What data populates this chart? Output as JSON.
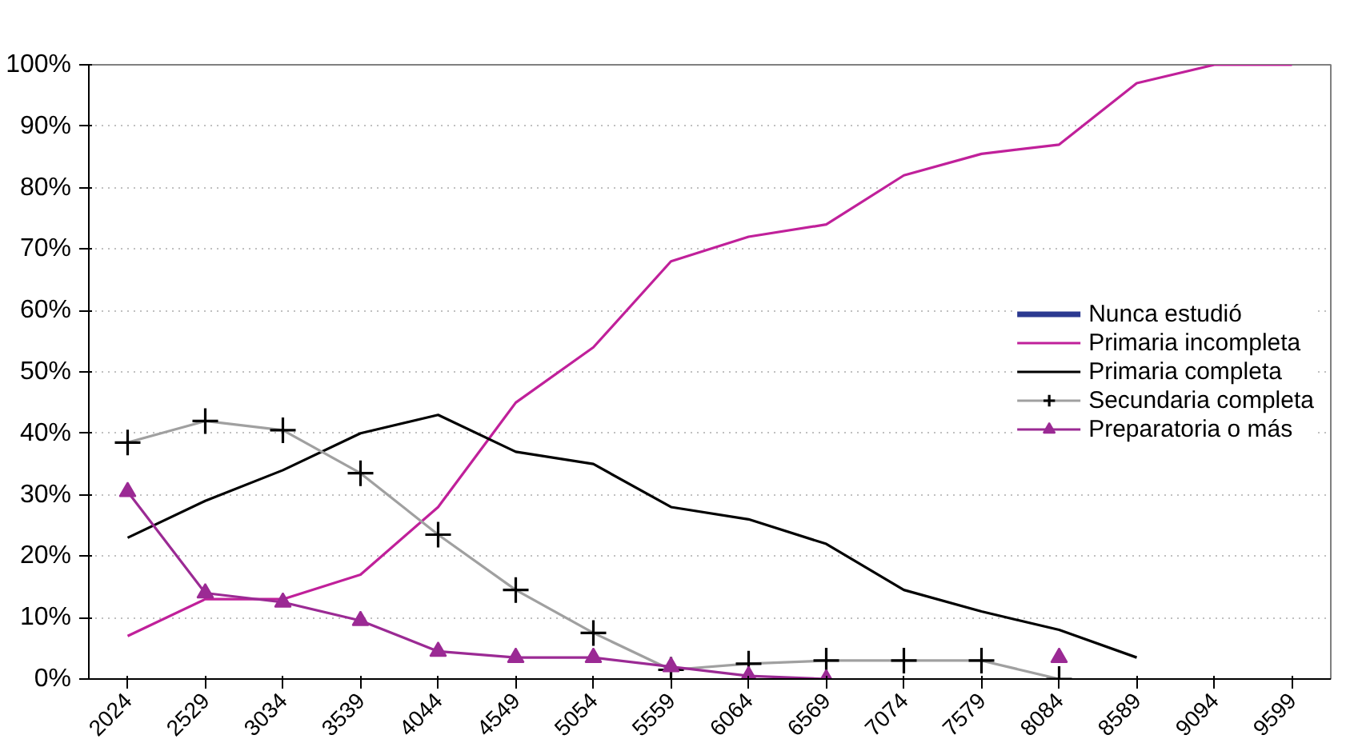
{
  "chart_data": {
    "type": "line",
    "categories": [
      "2024",
      "2529",
      "3034",
      "3539",
      "4044",
      "4549",
      "5054",
      "5559",
      "6064",
      "6569",
      "7074",
      "7579",
      "8084",
      "8589",
      "9094",
      "9599"
    ],
    "ylim": [
      0,
      100
    ],
    "yticks": [
      {
        "value": 0,
        "label": "0%"
      },
      {
        "value": 10,
        "label": "10%"
      },
      {
        "value": 20,
        "label": "20%"
      },
      {
        "value": 30,
        "label": "30%"
      },
      {
        "value": 40,
        "label": "40%"
      },
      {
        "value": 50,
        "label": "50%"
      },
      {
        "value": 60,
        "label": "60%"
      },
      {
        "value": 70,
        "label": "70%"
      },
      {
        "value": 80,
        "label": "80%"
      },
      {
        "value": 90,
        "label": "90%"
      },
      {
        "value": 100,
        "label": "100%"
      }
    ],
    "grid": "y",
    "legend": "right",
    "line_style": "solid",
    "series": [
      {
        "name": "Nunca estudió",
        "color": "#2b3990",
        "marker": "none",
        "values": [
          null,
          null,
          null,
          null,
          null,
          null,
          null,
          null,
          null,
          null,
          null,
          null,
          null,
          null,
          null,
          null
        ]
      },
      {
        "name": "Primaria incompleta",
        "color": "#c0209a",
        "marker": "none",
        "values": [
          7,
          13,
          13,
          17,
          28,
          45,
          54,
          68,
          72,
          74,
          82,
          85.5,
          87,
          97,
          100,
          100
        ]
      },
      {
        "name": "Primaria completa",
        "color": "#000000",
        "marker": "none",
        "values": [
          23,
          29,
          34,
          40,
          43,
          37,
          35,
          28,
          26,
          22,
          14.5,
          11,
          8,
          3.5,
          null,
          null
        ]
      },
      {
        "name": "Secundaria completa",
        "color": "#a0a0a0",
        "marker": "cross",
        "values": [
          38.5,
          42,
          40.5,
          33.5,
          23.5,
          14.5,
          7.5,
          1.5,
          2.5,
          3,
          3,
          3,
          0,
          null,
          null,
          null
        ]
      },
      {
        "name": "Preparatoria o más",
        "color": "#9b2a94",
        "marker": "triangle",
        "values": [
          30.5,
          14,
          12.5,
          9.5,
          4.5,
          3.5,
          3.5,
          2,
          0.5,
          0,
          null,
          null,
          3.5,
          null,
          null,
          null
        ]
      }
    ]
  }
}
